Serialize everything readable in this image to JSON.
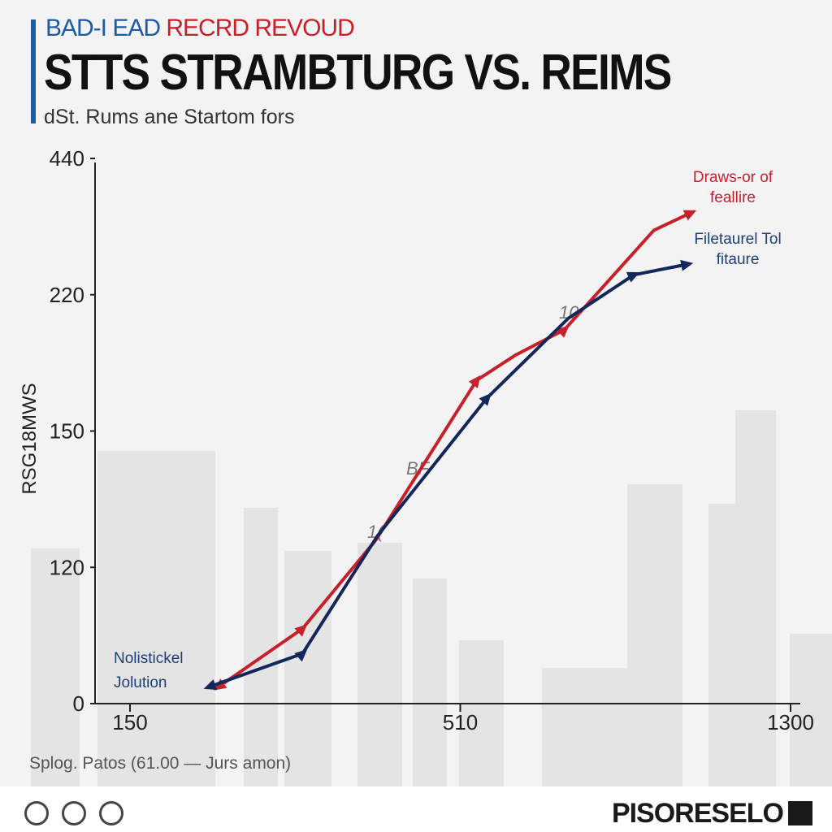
{
  "kicker": [
    "BAD-I EAD",
    "RECRD REVOUD"
  ],
  "brand": "PISORESELO",
  "chart_data": {
    "type": "line",
    "title": "STTS STRAMBTURG VS. REIMS",
    "subtitle": "dSt. Rums ane Startom fors",
    "y_label": "RSG18MWS",
    "source": "Splog. Patos (61.00 — Jurs amon)",
    "annotations": [
      "10",
      "BF",
      "1(",
      "Nolistickel Jolution"
    ],
    "xlim": [
      150,
      1300
    ],
    "xticks": [
      150,
      510,
      1300
    ],
    "ylim": [
      0,
      440
    ],
    "yticks": [
      0,
      120,
      150,
      220,
      440
    ],
    "series": [
      {
        "name": "Draws-or of feallire",
        "color": "#c8202a",
        "x": [
          247,
          338,
          418,
          549,
          642,
          759,
          973,
          1061
        ],
        "values": [
          15,
          66,
          126,
          176,
          189,
          202,
          324,
          352
        ]
      },
      {
        "name": "Filetaurel Tol fitaure",
        "color": "#14275a",
        "x": [
          237,
          338,
          420,
          574,
          769,
          925,
          1052
        ],
        "values": [
          15,
          44,
          127,
          167,
          208,
          252,
          269
        ]
      }
    ]
  }
}
